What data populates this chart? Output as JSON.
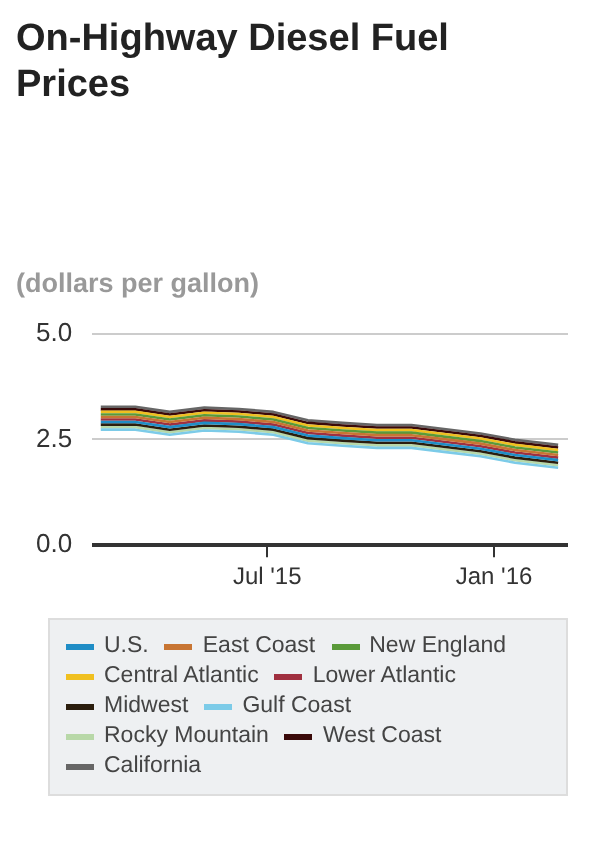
{
  "chart_data": {
    "type": "line",
    "title": "On-Highway Diesel Fuel Prices",
    "ylabel": "(dollars per gallon)",
    "x": [
      "2015-02-16",
      "2015-03-16",
      "2015-04-13",
      "2015-05-11",
      "2015-06-08",
      "2015-07-06",
      "2015-08-03",
      "2015-08-31",
      "2015-09-28",
      "2015-10-26",
      "2015-11-23",
      "2015-12-21",
      "2016-01-18",
      "2016-02-22"
    ],
    "xlim": [
      "2015-02-09",
      "2016-03-01"
    ],
    "xticks": [
      {
        "value": "2015-07-01",
        "label": "Jul '15"
      },
      {
        "value": "2016-01-01",
        "label": "Jan '16"
      }
    ],
    "ylim": [
      0,
      5
    ],
    "yticks": [
      {
        "value": 0,
        "label": "0.0"
      },
      {
        "value": 2.5,
        "label": "2.5"
      },
      {
        "value": 5,
        "label": "5.0"
      }
    ],
    "grid": "y",
    "legend": "bottom",
    "marker": "none",
    "line_style": "solid",
    "series": [
      {
        "name": "U.S.",
        "color": "#1f8dc6",
        "values": [
          2.91,
          2.91,
          2.79,
          2.89,
          2.86,
          2.79,
          2.59,
          2.53,
          2.48,
          2.48,
          2.38,
          2.28,
          2.13,
          2.01
        ]
      },
      {
        "name": "East Coast",
        "color": "#c87533",
        "values": [
          3.03,
          3.03,
          2.91,
          3.01,
          2.98,
          2.91,
          2.71,
          2.65,
          2.6,
          2.6,
          2.5,
          2.4,
          2.25,
          2.13
        ]
      },
      {
        "name": "New England",
        "color": "#5a9a3a",
        "values": [
          3.09,
          3.09,
          2.97,
          3.07,
          3.04,
          2.97,
          2.77,
          2.71,
          2.66,
          2.66,
          2.56,
          2.46,
          2.31,
          2.19
        ]
      },
      {
        "name": "Central Atlantic",
        "color": "#f0c020",
        "values": [
          3.15,
          3.15,
          3.03,
          3.13,
          3.1,
          3.03,
          2.83,
          2.77,
          2.72,
          2.72,
          2.62,
          2.52,
          2.37,
          2.25
        ]
      },
      {
        "name": "Lower Atlantic",
        "color": "#a03040",
        "values": [
          2.97,
          2.97,
          2.85,
          2.95,
          2.92,
          2.85,
          2.65,
          2.59,
          2.54,
          2.54,
          2.44,
          2.34,
          2.19,
          2.07
        ]
      },
      {
        "name": "Midwest",
        "color": "#2b1e0e",
        "values": [
          2.85,
          2.85,
          2.73,
          2.83,
          2.8,
          2.73,
          2.53,
          2.47,
          2.42,
          2.42,
          2.32,
          2.22,
          2.07,
          1.95
        ]
      },
      {
        "name": "Gulf Coast",
        "color": "#7ccbe8",
        "values": [
          2.73,
          2.73,
          2.61,
          2.71,
          2.68,
          2.61,
          2.41,
          2.35,
          2.3,
          2.3,
          2.2,
          2.1,
          1.95,
          1.83
        ]
      },
      {
        "name": "Rocky Mountain",
        "color": "#b8d8a8",
        "values": [
          2.79,
          2.79,
          2.67,
          2.77,
          2.74,
          2.67,
          2.47,
          2.41,
          2.36,
          2.36,
          2.26,
          2.16,
          2.01,
          1.89
        ]
      },
      {
        "name": "West Coast",
        "color": "#3a0a0a",
        "values": [
          3.21,
          3.21,
          3.09,
          3.19,
          3.16,
          3.09,
          2.89,
          2.83,
          2.78,
          2.78,
          2.68,
          2.58,
          2.43,
          2.31
        ]
      },
      {
        "name": "California",
        "color": "#666666",
        "values": [
          3.27,
          3.27,
          3.15,
          3.25,
          3.22,
          3.15,
          2.95,
          2.89,
          2.84,
          2.84,
          2.74,
          2.64,
          2.49,
          2.37
        ]
      }
    ]
  }
}
